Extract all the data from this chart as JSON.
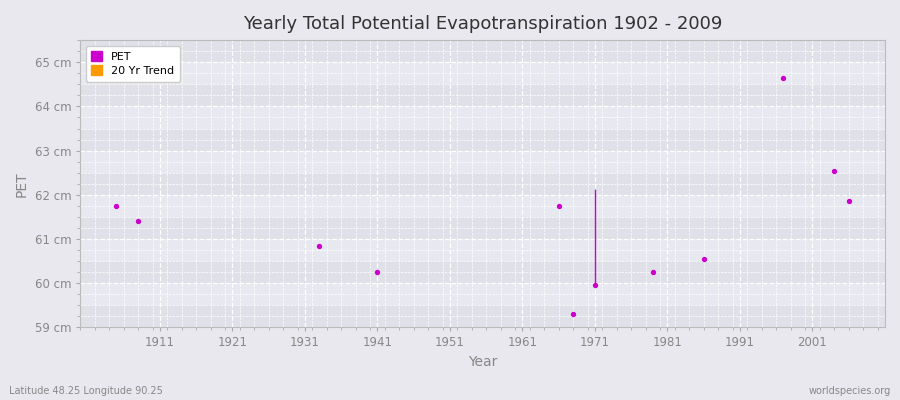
{
  "title": "Yearly Total Potential Evapotranspiration 1902 - 2009",
  "xlabel": "Year",
  "ylabel": "PET",
  "background_color": "#e8e8ee",
  "plot_bg_bands": [
    [
      59.0,
      59.5,
      "#e0e0e8"
    ],
    [
      59.5,
      60.0,
      "#e8e8f0"
    ],
    [
      60.0,
      60.5,
      "#e0e0e8"
    ],
    [
      60.5,
      61.0,
      "#e8e8f0"
    ],
    [
      61.0,
      61.5,
      "#e0e0e8"
    ],
    [
      61.5,
      62.0,
      "#e8e8f0"
    ],
    [
      62.0,
      62.5,
      "#e0e0e8"
    ],
    [
      62.5,
      63.0,
      "#e8e8f0"
    ],
    [
      63.0,
      63.5,
      "#e0e0e8"
    ],
    [
      63.5,
      64.0,
      "#e8e8f0"
    ],
    [
      64.0,
      64.5,
      "#e0e0e8"
    ],
    [
      64.5,
      65.0,
      "#e8e8f0"
    ],
    [
      65.0,
      65.5,
      "#e0e0e8"
    ]
  ],
  "ylim": [
    59.0,
    65.5
  ],
  "xlim": [
    1900,
    2011
  ],
  "ytick_labels": [
    "59 cm",
    "60 cm",
    "61 cm",
    "62 cm",
    "63 cm",
    "64 cm",
    "65 cm"
  ],
  "ytick_values": [
    59,
    60,
    61,
    62,
    63,
    64,
    65
  ],
  "xtick_values": [
    1911,
    1921,
    1931,
    1941,
    1951,
    1961,
    1971,
    1981,
    1991,
    2001
  ],
  "pet_color": "#cc00cc",
  "trend_color": "#ff9900",
  "pet_points": [
    [
      1905,
      61.75
    ],
    [
      1908,
      61.4
    ],
    [
      1933,
      60.85
    ],
    [
      1941,
      60.25
    ],
    [
      1966,
      61.75
    ],
    [
      1968,
      59.3
    ],
    [
      1971,
      59.95
    ],
    [
      1979,
      60.25
    ],
    [
      1986,
      60.55
    ],
    [
      1997,
      64.65
    ],
    [
      2004,
      62.55
    ],
    [
      2006,
      61.85
    ]
  ],
  "trend_line": [
    [
      1971,
      62.1
    ],
    [
      1971,
      60.0
    ]
  ],
  "footer_left": "Latitude 48.25 Longitude 90.25",
  "footer_right": "worldspecies.org"
}
